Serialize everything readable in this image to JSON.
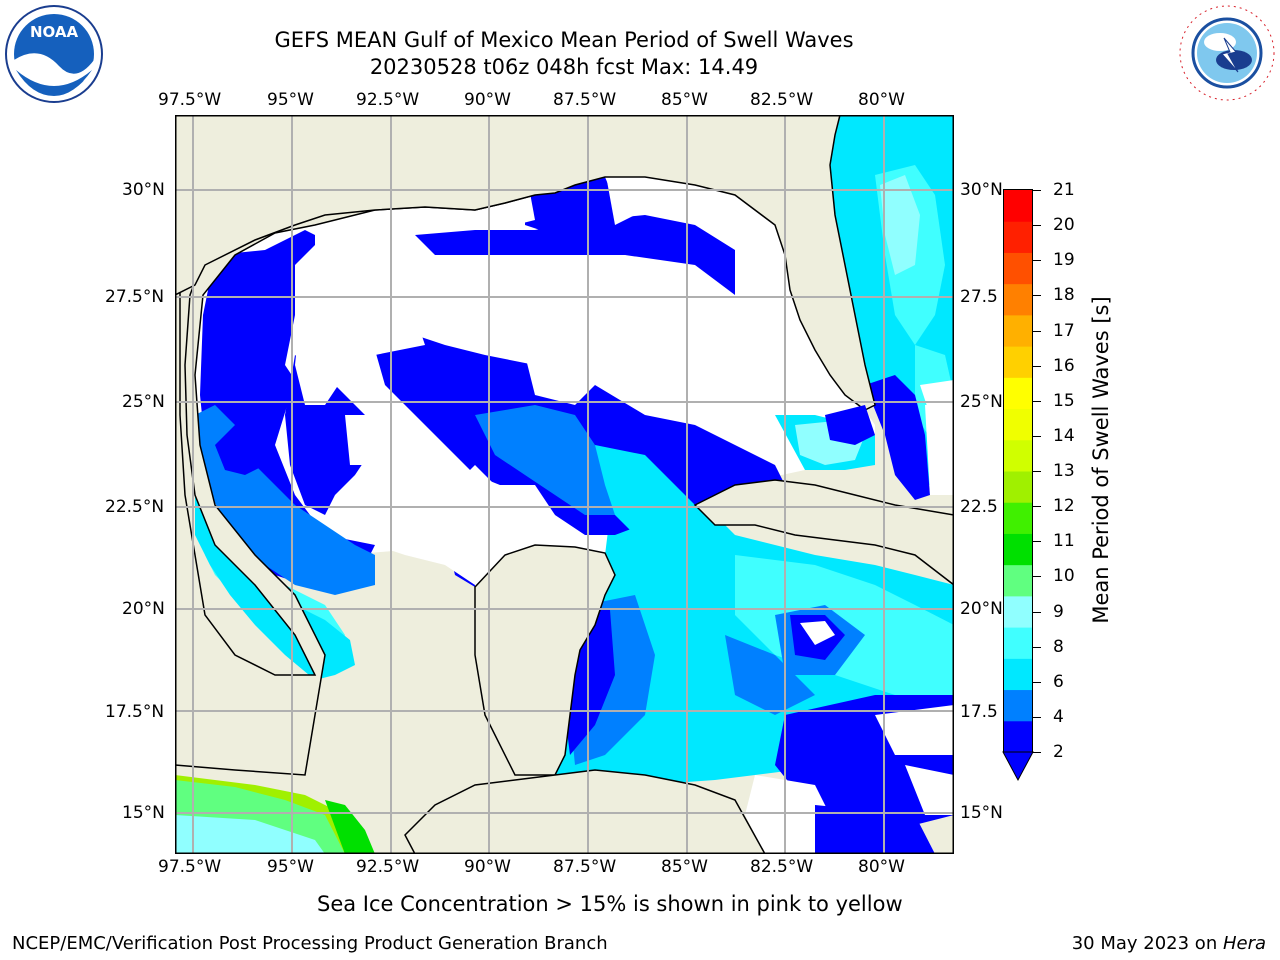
{
  "title": {
    "line1": "GEFS MEAN Gulf of Mexico Mean Period of Swell Waves",
    "line2": "20230528 t06z 048h fcst   Max: 14.49"
  },
  "map": {
    "x_tick_labels": [
      "97.5°W",
      "95°W",
      "92.5°W",
      "90°W",
      "87.5°W",
      "85°W",
      "82.5°W",
      "80°W"
    ],
    "y_tick_labels_left": [
      "30°N",
      "27.5°N",
      "25°N",
      "22.5°N",
      "20°N",
      "17.5°N",
      "15°N"
    ],
    "y_tick_labels_right": [
      "30°N",
      "27.5",
      "25°N",
      "22.5",
      "20°N",
      "17.5",
      "15°N"
    ],
    "land_color": "#eeeedd",
    "gridlines": true
  },
  "colorbar": {
    "label": "Mean Period of Swell Waves [s]",
    "ticks": [
      "21",
      "20",
      "19",
      "18",
      "17",
      "16",
      "15",
      "14",
      "13",
      "12",
      "11",
      "10",
      "9",
      "8",
      "6",
      "4",
      "2"
    ],
    "colors_bottom_to_top": [
      "#0000ff",
      "#0080ff",
      "#00e8ff",
      "#40ffff",
      "#90ffff",
      "#60ff80",
      "#00e000",
      "#40f000",
      "#a0f000",
      "#d0ff00",
      "#f0ff00",
      "#ffff00",
      "#ffd000",
      "#ffb000",
      "#ff8000",
      "#ff5000",
      "#ff2000",
      "#ff0000"
    ],
    "extend": "min"
  },
  "footnote": "Sea Ice Concentration > 15% is shown in pink to yellow",
  "footer": {
    "left": "NCEP/EMC/Verification Post Processing Product Generation Branch",
    "right_date": "30 May 2023 on ",
    "right_host": "Hera"
  },
  "logos": {
    "left": {
      "name": "noaa-logo",
      "text": "NOAA"
    },
    "right": {
      "name": "nws-logo",
      "text": "NATIONAL WEATHER SERVICE"
    }
  }
}
